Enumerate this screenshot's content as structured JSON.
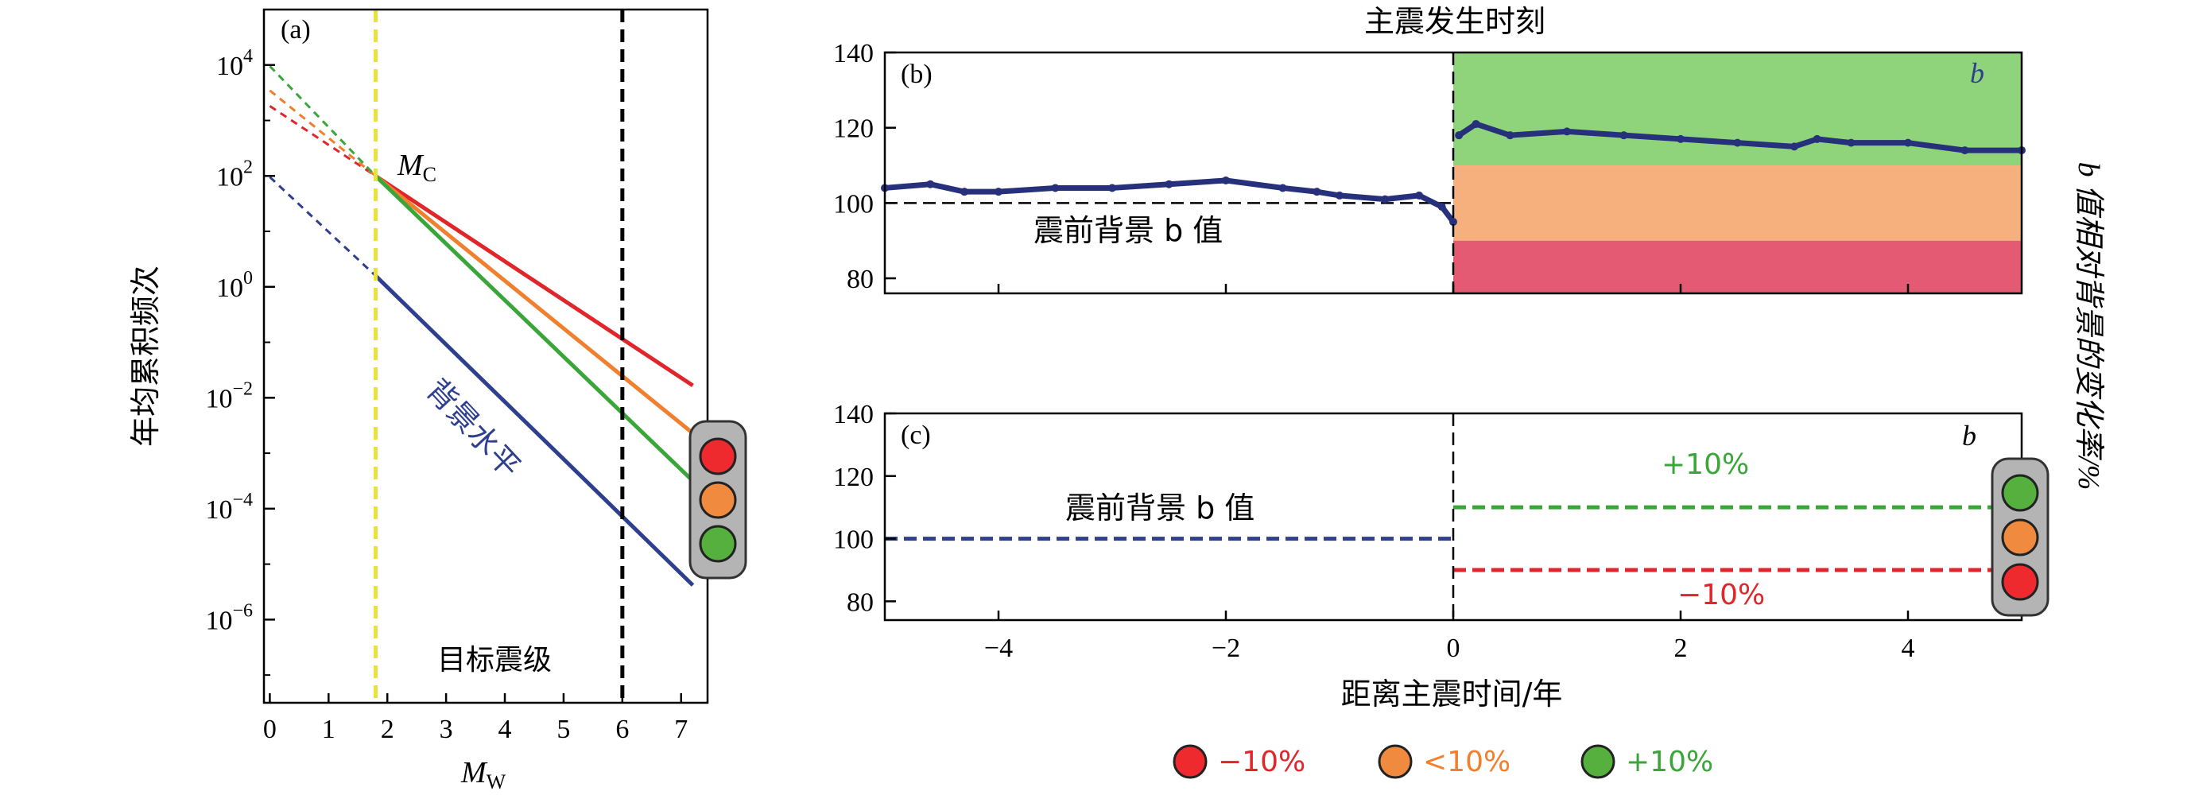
{
  "colors": {
    "red": "#e0262b",
    "orange": "#f07f2e",
    "green": "#3aa63a",
    "blue": "#2f3f8f",
    "yellow_dash": "#e8e23a",
    "zone_green": "#8fd47a",
    "zone_orange": "#f5b07e",
    "zone_pink": "#e55a73",
    "bvalue_dots": "#27307a",
    "light_red": "#ee2a2e",
    "light_orange": "#f08a3e",
    "light_green": "#55b03e",
    "light_box": "#b4b4b4"
  },
  "chart_data": [
    {
      "id": "a",
      "type": "line",
      "panel_label": "(a)",
      "xlabel_main": "M",
      "xlabel_sub": "W",
      "ylabel": "年均累积频次",
      "xlim": [
        -0.1,
        7.45
      ],
      "ylim_log10": [
        -7.5,
        5.0
      ],
      "y_scale": "log",
      "xticks": [
        "0",
        "1",
        "2",
        "3",
        "4",
        "5",
        "6",
        "7"
      ],
      "yticks": [
        {
          "base": "10",
          "exp": "4",
          "log10": 4
        },
        {
          "base": "10",
          "exp": "2",
          "log10": 2
        },
        {
          "base": "10",
          "exp": "0",
          "log10": 0
        },
        {
          "base": "10",
          "exp": "−2",
          "log10": -2
        },
        {
          "base": "10",
          "exp": "−4",
          "log10": -4
        },
        {
          "base": "10",
          "exp": "−6",
          "log10": -6
        }
      ],
      "mc": 1.8,
      "target_magnitude": 6.0,
      "mc_label_main": "M",
      "mc_label_sub": "C",
      "target_label": "目标震级",
      "background_label": "背景水平",
      "series": [
        {
          "color_key": "red",
          "x": [
            0,
            1.8,
            7.2
          ],
          "log10_y": [
            3.26,
            2.0,
            -1.78
          ]
        },
        {
          "color_key": "orange",
          "x": [
            0,
            1.8,
            7.2
          ],
          "log10_y": [
            3.54,
            2.0,
            -2.64
          ]
        },
        {
          "color_key": "green",
          "x": [
            0,
            1.8,
            7.2
          ],
          "log10_y": [
            3.98,
            2.0,
            -3.5
          ]
        },
        {
          "color_key": "blue",
          "x": [
            0,
            1.8,
            7.2
          ],
          "log10_y": [
            1.98,
            0.2,
            -5.38
          ]
        }
      ]
    },
    {
      "id": "b",
      "type": "scatter",
      "panel_label": "(b)",
      "top_title": "主震发生时刻",
      "corner_label": "b",
      "annotation": "震前背景 b 值",
      "xlim": [
        -5.0,
        5.0
      ],
      "ylim": [
        76,
        140
      ],
      "yticks": [
        "80",
        "100",
        "120",
        "140"
      ],
      "zones": [
        {
          "from": 110,
          "to": 140,
          "color_key": "zone_green"
        },
        {
          "from": 90,
          "to": 110,
          "color_key": "zone_orange"
        },
        {
          "from": 76,
          "to": 90,
          "color_key": "zone_pink"
        }
      ],
      "reference_line": 100,
      "b_value_series": {
        "x": [
          -5.0,
          -4.6,
          -4.3,
          -4.0,
          -3.5,
          -3.0,
          -2.5,
          -2.0,
          -1.5,
          -1.2,
          -1.0,
          -0.6,
          -0.3,
          -0.1,
          0.0,
          0.05,
          0.2,
          0.5,
          1.0,
          1.5,
          2.0,
          2.5,
          3.0,
          3.2,
          3.5,
          4.0,
          4.5,
          5.0
        ],
        "y": [
          104,
          105,
          103,
          103,
          104,
          104,
          105,
          106,
          104,
          103,
          102,
          101,
          102,
          99,
          95,
          118,
          121,
          118,
          119,
          118,
          117,
          116,
          115,
          117,
          116,
          116,
          114,
          114
        ]
      }
    },
    {
      "id": "c",
      "type": "line",
      "panel_label": "(c)",
      "corner_label": "b",
      "annotation": "震前背景 b 值",
      "xlabel": "距离主震时间/年",
      "xlim": [
        -5.0,
        5.0
      ],
      "ylim": [
        74,
        140
      ],
      "xticks": [
        "−4",
        "−2",
        "0",
        "2",
        "4"
      ],
      "xtick_values": [
        -4,
        -2,
        0,
        2,
        4
      ],
      "yticks": [
        "80",
        "100",
        "120",
        "140"
      ],
      "series": [
        {
          "color_key": "blue",
          "x": [
            -5,
            0
          ],
          "y": [
            100,
            100
          ]
        },
        {
          "color_key": "green",
          "x": [
            0,
            5
          ],
          "y": [
            110,
            110
          ],
          "label": "+10%"
        },
        {
          "color_key": "red",
          "x": [
            0,
            5
          ],
          "y": [
            90,
            90
          ],
          "label": "−10%"
        }
      ]
    }
  ],
  "shared_ylabel": "b 值相对背景的变化率/%",
  "legend": [
    {
      "color_key": "light_red",
      "label": "−10%",
      "text_color_key": "red"
    },
    {
      "color_key": "light_orange",
      "label": "<10%",
      "text_color_key": "orange"
    },
    {
      "color_key": "light_green",
      "label": "+10%",
      "text_color_key": "green"
    }
  ]
}
